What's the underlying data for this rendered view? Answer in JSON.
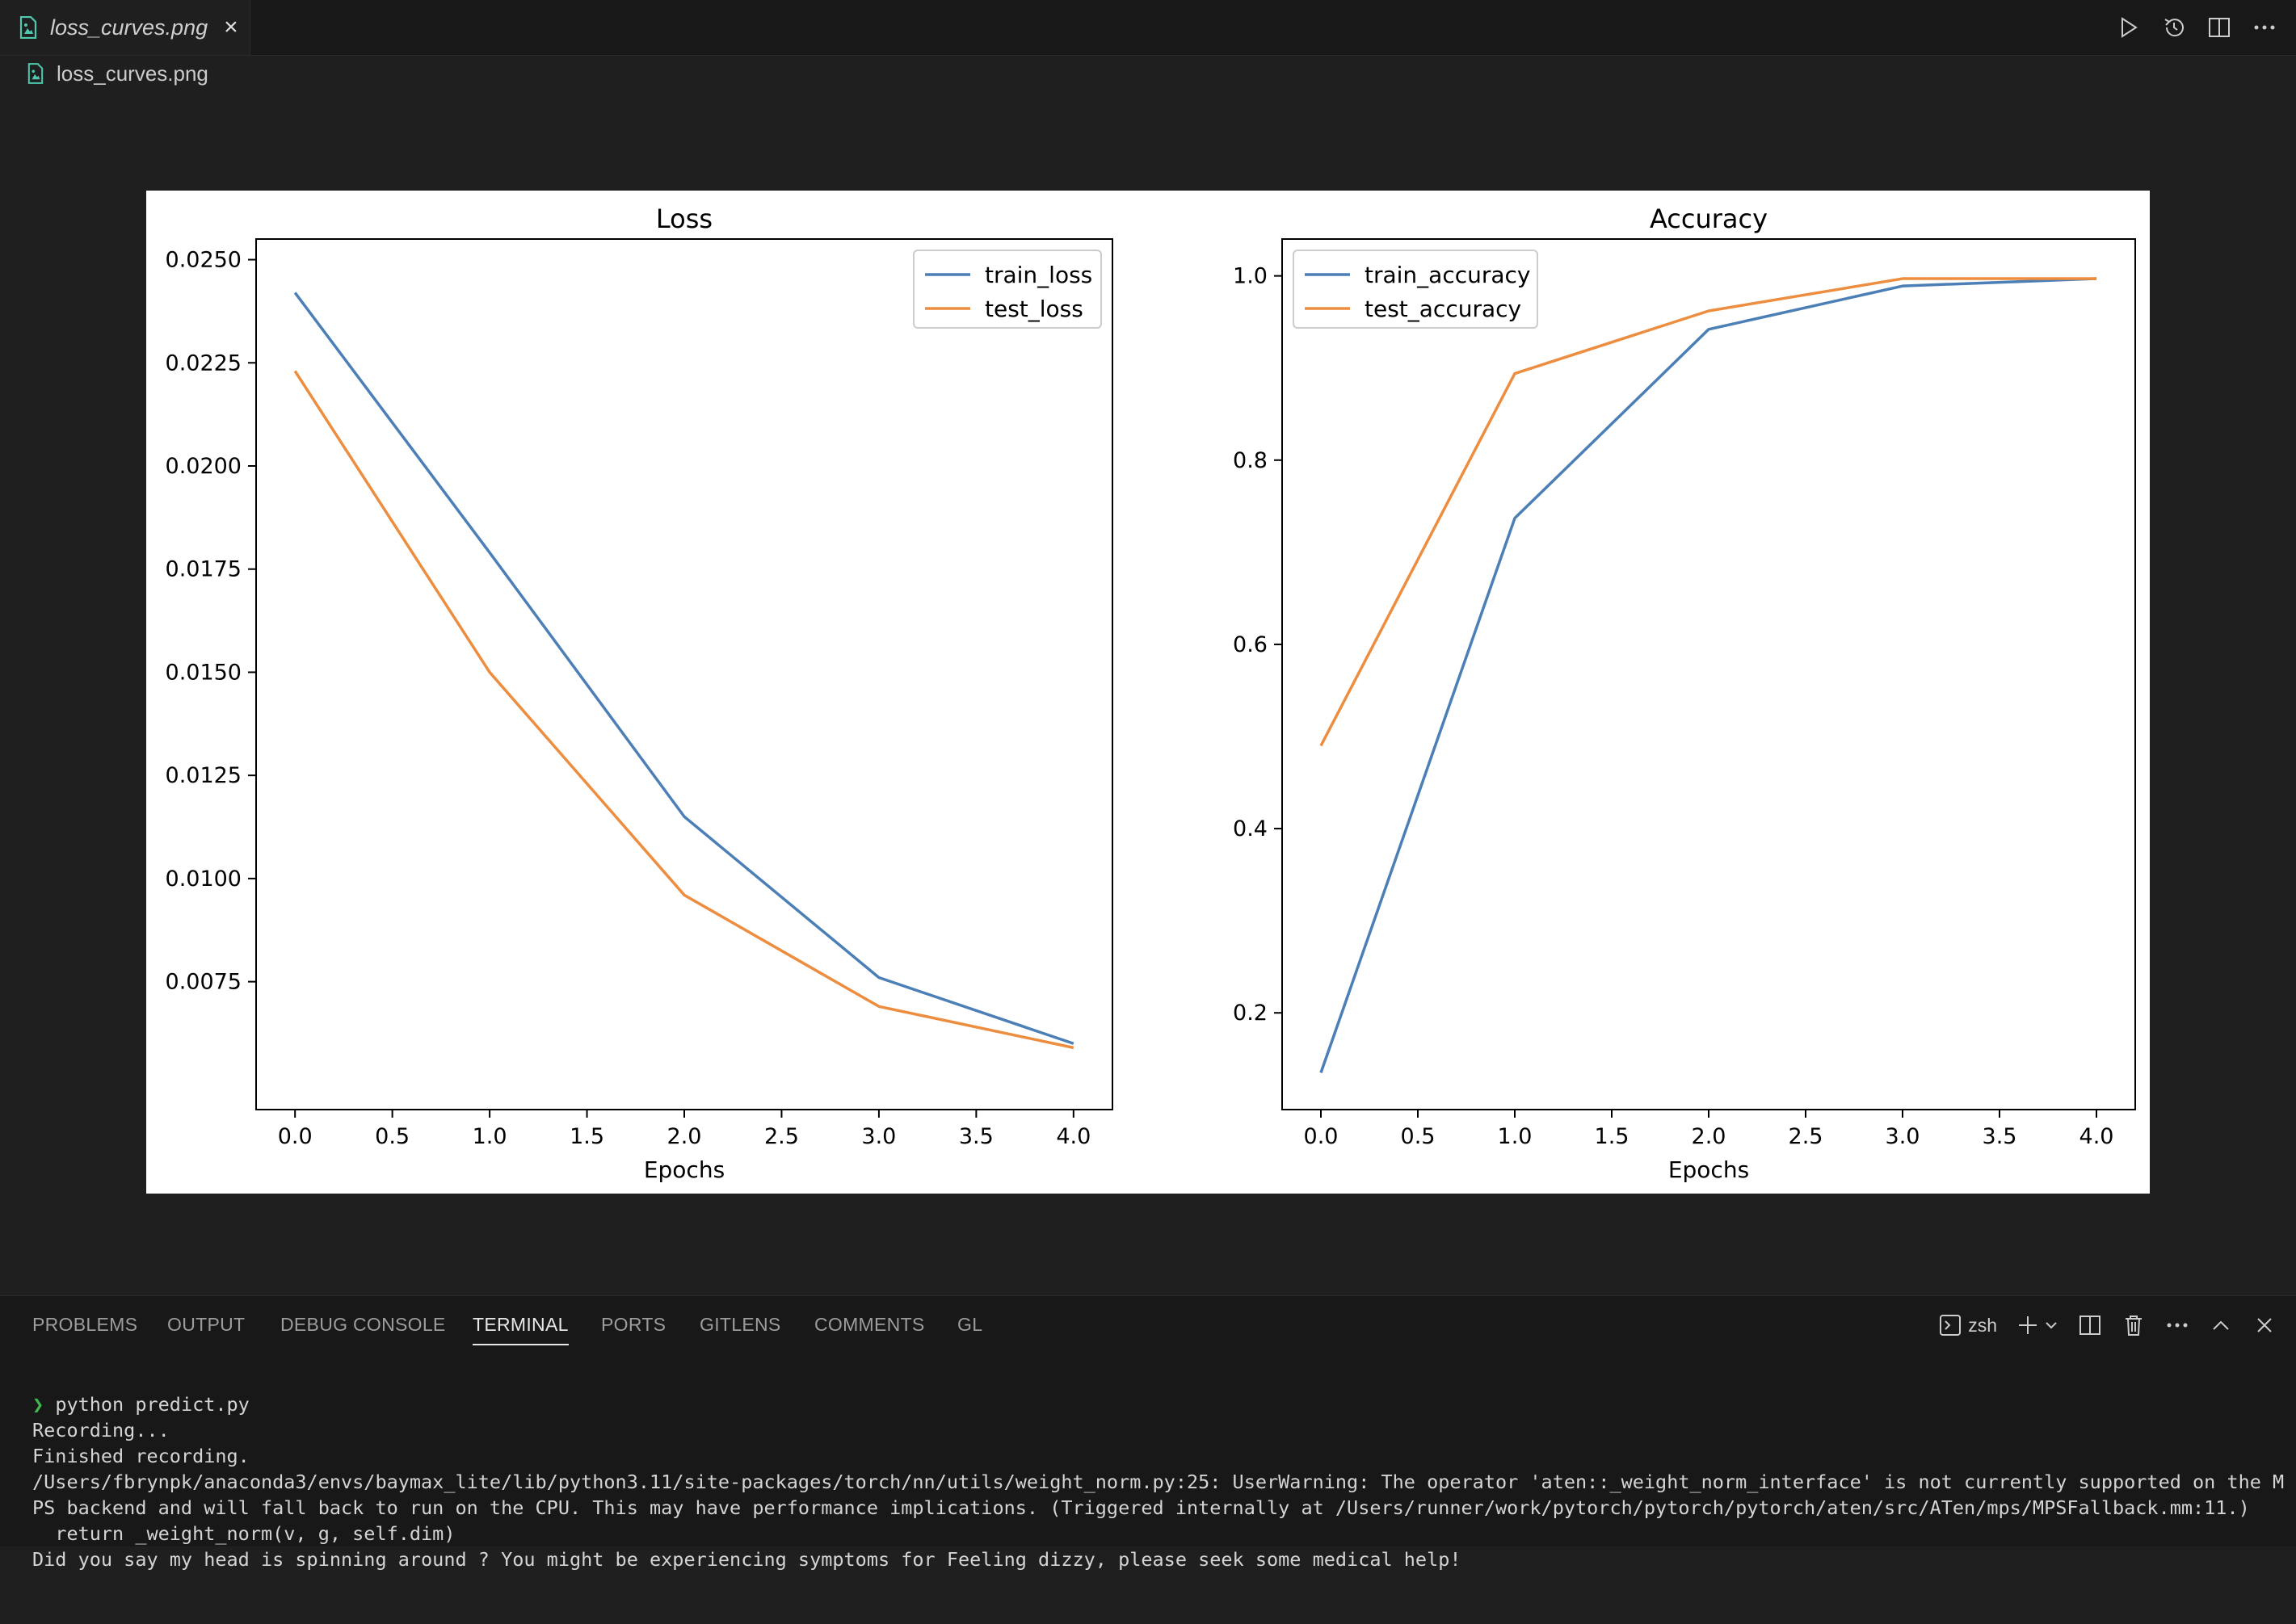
{
  "tab": {
    "title": "loss_curves.png",
    "close_icon": "×"
  },
  "breadcrumb": {
    "file": "loss_curves.png"
  },
  "colors": {
    "train": "#4c7fb5",
    "test": "#ed8d3f",
    "image_icon": "#4ec9b0",
    "prompt": "#3fb950"
  },
  "chart_data": [
    {
      "type": "line",
      "title": "Loss",
      "xlabel": "Epochs",
      "ylabel": "",
      "x": [
        0,
        1,
        2,
        3,
        4
      ],
      "xlim": [
        -0.2,
        4.2
      ],
      "ylim": [
        0.0044,
        0.0255
      ],
      "xticks": [
        "0.0",
        "0.5",
        "1.0",
        "1.5",
        "2.0",
        "2.5",
        "3.0",
        "3.5",
        "4.0"
      ],
      "yticks": [
        "0.0075",
        "0.0100",
        "0.0125",
        "0.0150",
        "0.0175",
        "0.0200",
        "0.0225",
        "0.0250"
      ],
      "legend": "top-right",
      "grid": false,
      "series": [
        {
          "name": "train_loss",
          "values": [
            0.0242,
            0.0179,
            0.0115,
            0.0076,
            0.006
          ]
        },
        {
          "name": "test_loss",
          "values": [
            0.0223,
            0.015,
            0.0096,
            0.0069,
            0.0059
          ]
        }
      ]
    },
    {
      "type": "line",
      "title": "Accuracy",
      "xlabel": "Epochs",
      "ylabel": "",
      "x": [
        0,
        1,
        2,
        3,
        4
      ],
      "xlim": [
        -0.2,
        4.2
      ],
      "ylim": [
        0.095,
        1.04
      ],
      "xticks": [
        "0.0",
        "0.5",
        "1.0",
        "1.5",
        "2.0",
        "2.5",
        "3.0",
        "3.5",
        "4.0"
      ],
      "yticks": [
        "0.2",
        "0.4",
        "0.6",
        "0.8",
        "1.0"
      ],
      "legend": "top-left",
      "grid": false,
      "series": [
        {
          "name": "train_accuracy",
          "values": [
            0.135,
            0.737,
            0.942,
            0.989,
            0.997
          ]
        },
        {
          "name": "test_accuracy",
          "values": [
            0.49,
            0.894,
            0.962,
            0.997,
            0.997
          ]
        }
      ]
    }
  ],
  "panel": {
    "tabs": [
      "PROBLEMS",
      "OUTPUT",
      "DEBUG CONSOLE",
      "TERMINAL",
      "PORTS",
      "GITLENS",
      "COMMENTS",
      "GL"
    ],
    "active_tab": "TERMINAL",
    "shell": "zsh"
  },
  "terminal": {
    "prompt_symbol": "❯",
    "command": "python predict.py",
    "lines": [
      "Recording...",
      "Finished recording.",
      "/Users/fbrynpk/anaconda3/envs/baymax_lite/lib/python3.11/site-packages/torch/nn/utils/weight_norm.py:25: UserWarning: The operator 'aten::_weight_norm_interface' is not currently supported on the M",
      "PS backend and will fall back to run on the CPU. This may have performance implications. (Triggered internally at /Users/runner/work/pytorch/pytorch/pytorch/aten/src/ATen/mps/MPSFallback.mm:11.)",
      "  return _weight_norm(v, g, self.dim)",
      "Did you say my head is spinning around ? You might be experiencing symptoms for Feeling dizzy, please seek some medical help!"
    ]
  }
}
